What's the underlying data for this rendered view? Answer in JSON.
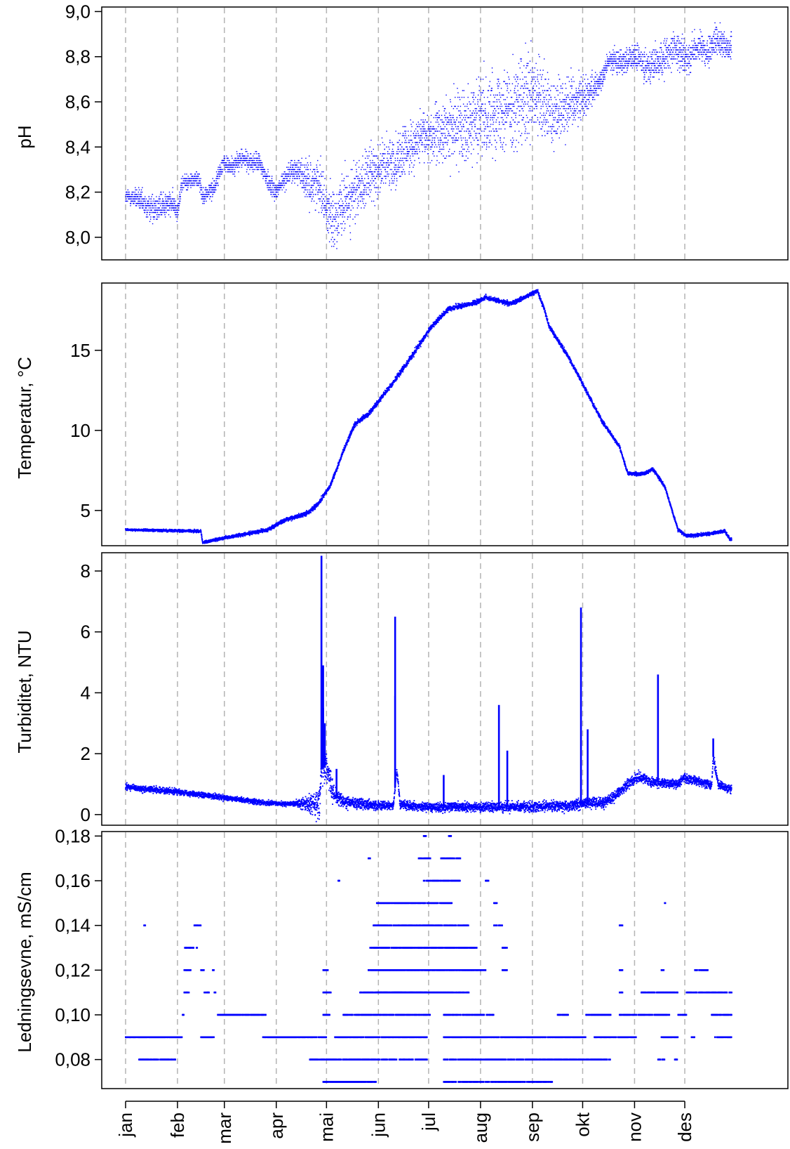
{
  "chart_data": {
    "type": "scatter",
    "series_color": "#0000ff",
    "grid": "vertical dashed lines at month starts",
    "x_axis": {
      "unit": "day of year",
      "range": [
        0,
        365
      ],
      "month_starts": [
        0,
        31,
        59,
        90,
        120,
        151,
        181,
        212,
        243,
        273,
        304,
        334
      ],
      "tick_labels": [
        "jan",
        "feb",
        "mar",
        "apr",
        "mai",
        "jun",
        "jul",
        "aug",
        "sep",
        "okt",
        "nov",
        "des"
      ]
    },
    "panels": [
      {
        "id": "ph",
        "ylabel": "pH",
        "ylim": [
          7.9,
          9.02
        ],
        "yticks": [
          8.0,
          8.2,
          8.4,
          8.6,
          8.8,
          9.0
        ],
        "ytick_labels": [
          "8,0",
          "8,2",
          "8,4",
          "8,6",
          "8,8",
          "9,0"
        ],
        "trend": [
          [
            0,
            8.18
          ],
          [
            8,
            8.17
          ],
          [
            12,
            8.13
          ],
          [
            20,
            8.14
          ],
          [
            28,
            8.15
          ],
          [
            31,
            8.12
          ],
          [
            34,
            8.24
          ],
          [
            44,
            8.26
          ],
          [
            46,
            8.18
          ],
          [
            53,
            8.22
          ],
          [
            58,
            8.33
          ],
          [
            64,
            8.31
          ],
          [
            69,
            8.35
          ],
          [
            75,
            8.33
          ],
          [
            80,
            8.33
          ],
          [
            85,
            8.25
          ],
          [
            90,
            8.2
          ],
          [
            97,
            8.28
          ],
          [
            103,
            8.3
          ],
          [
            110,
            8.23
          ],
          [
            116,
            8.25
          ],
          [
            120,
            8.12
          ],
          [
            126,
            8.08
          ],
          [
            131,
            8.15
          ],
          [
            140,
            8.22
          ],
          [
            150,
            8.3
          ],
          [
            160,
            8.33
          ],
          [
            170,
            8.4
          ],
          [
            175,
            8.43
          ],
          [
            181,
            8.45
          ],
          [
            190,
            8.46
          ],
          [
            200,
            8.5
          ],
          [
            212,
            8.53
          ],
          [
            225,
            8.58
          ],
          [
            235,
            8.58
          ],
          [
            245,
            8.62
          ],
          [
            255,
            8.55
          ],
          [
            265,
            8.6
          ],
          [
            275,
            8.63
          ],
          [
            285,
            8.7
          ],
          [
            288,
            8.78
          ],
          [
            300,
            8.78
          ],
          [
            304,
            8.8
          ],
          [
            312,
            8.76
          ],
          [
            320,
            8.78
          ],
          [
            327,
            8.84
          ],
          [
            335,
            8.79
          ],
          [
            342,
            8.85
          ],
          [
            348,
            8.8
          ],
          [
            352,
            8.88
          ],
          [
            360,
            8.84
          ]
        ],
        "spread": [
          [
            0,
            0.03
          ],
          [
            20,
            0.06
          ],
          [
            34,
            0.03
          ],
          [
            100,
            0.04
          ],
          [
            110,
            0.08
          ],
          [
            130,
            0.12
          ],
          [
            175,
            0.09
          ],
          [
            190,
            0.12
          ],
          [
            240,
            0.18
          ],
          [
            270,
            0.1
          ],
          [
            285,
            0.04
          ],
          [
            300,
            0.05
          ],
          [
            320,
            0.07
          ],
          [
            360,
            0.05
          ]
        ]
      },
      {
        "id": "temp",
        "ylabel": "Temperatur, °C",
        "ylim": [
          2.8,
          19.2
        ],
        "yticks": [
          5,
          10,
          15
        ],
        "ytick_labels": [
          "5",
          "10",
          "15"
        ],
        "trend": [
          [
            0,
            3.8
          ],
          [
            45,
            3.7
          ],
          [
            46,
            3.0
          ],
          [
            55,
            3.2
          ],
          [
            70,
            3.5
          ],
          [
            85,
            3.8
          ],
          [
            95,
            4.4
          ],
          [
            108,
            4.8
          ],
          [
            115,
            5.4
          ],
          [
            122,
            6.5
          ],
          [
            132,
            9.2
          ],
          [
            137,
            10.4
          ],
          [
            145,
            11.0
          ],
          [
            160,
            13.0
          ],
          [
            170,
            14.5
          ],
          [
            183,
            16.5
          ],
          [
            193,
            17.6
          ],
          [
            210,
            18.0
          ],
          [
            215,
            18.3
          ],
          [
            230,
            17.9
          ],
          [
            240,
            18.4
          ],
          [
            246,
            18.7
          ],
          [
            250,
            17.6
          ],
          [
            253,
            16.5
          ],
          [
            265,
            14.5
          ],
          [
            275,
            12.5
          ],
          [
            285,
            10.5
          ],
          [
            295,
            9.0
          ],
          [
            300,
            7.3
          ],
          [
            310,
            7.3
          ],
          [
            315,
            7.6
          ],
          [
            322,
            6.5
          ],
          [
            330,
            3.8
          ],
          [
            335,
            3.4
          ],
          [
            345,
            3.5
          ],
          [
            358,
            3.7
          ],
          [
            361,
            3.2
          ]
        ],
        "spread": [
          [
            0,
            0.05
          ],
          [
            120,
            0.12
          ],
          [
            150,
            0.15
          ],
          [
            360,
            0.08
          ]
        ]
      },
      {
        "id": "turb",
        "ylabel": "Turbiditet, NTU",
        "ylim": [
          -0.35,
          8.6
        ],
        "yticks": [
          0,
          2,
          4,
          6,
          8
        ],
        "ytick_labels": [
          "0",
          "2",
          "4",
          "6",
          "8"
        ],
        "trend": [
          [
            0,
            0.9
          ],
          [
            30,
            0.75
          ],
          [
            45,
            0.65
          ],
          [
            60,
            0.55
          ],
          [
            80,
            0.4
          ],
          [
            95,
            0.35
          ],
          [
            116,
            0.35
          ],
          [
            117,
            1.5
          ],
          [
            120,
            1.6
          ],
          [
            124,
            0.7
          ],
          [
            130,
            0.4
          ],
          [
            150,
            0.3
          ],
          [
            160,
            0.3
          ],
          [
            162,
            1.5
          ],
          [
            164,
            0.35
          ],
          [
            175,
            0.25
          ],
          [
            200,
            0.25
          ],
          [
            230,
            0.25
          ],
          [
            245,
            0.25
          ],
          [
            265,
            0.3
          ],
          [
            280,
            0.4
          ],
          [
            285,
            0.35
          ],
          [
            292,
            0.6
          ],
          [
            302,
            1.1
          ],
          [
            307,
            1.25
          ],
          [
            315,
            1.05
          ],
          [
            330,
            1.0
          ],
          [
            333,
            1.2
          ],
          [
            345,
            1.05
          ],
          [
            350,
            0.95
          ],
          [
            351,
            1.9
          ],
          [
            354,
            1.0
          ],
          [
            360,
            0.85
          ]
        ],
        "spread": [
          [
            0,
            0.1
          ],
          [
            100,
            0.06
          ],
          [
            118,
            0.5
          ],
          [
            126,
            0.2
          ],
          [
            160,
            0.12
          ],
          [
            280,
            0.15
          ],
          [
            300,
            0.15
          ],
          [
            360,
            0.12
          ]
        ],
        "spikes": [
          [
            117,
            8.5
          ],
          [
            117,
            6.8
          ],
          [
            118,
            4.9
          ],
          [
            118,
            3.5
          ],
          [
            119,
            3.0
          ],
          [
            161,
            6.5
          ],
          [
            161,
            3.9
          ],
          [
            223,
            3.6
          ],
          [
            228,
            2.1
          ],
          [
            272,
            6.8
          ],
          [
            276,
            2.8
          ],
          [
            318,
            4.6
          ],
          [
            351,
            2.5
          ],
          [
            126,
            1.5
          ],
          [
            190,
            1.3
          ]
        ]
      },
      {
        "id": "cond",
        "ylabel": "Ledningsevne, mS/cm",
        "ylim": [
          0.067,
          0.182
        ],
        "yticks": [
          0.08,
          0.1,
          0.12,
          0.14,
          0.16,
          0.18
        ],
        "ytick_labels": [
          "0,08",
          "0,10",
          "0,12",
          "0,14",
          "0,16",
          "0,18"
        ],
        "segments": [
          [
            0.09,
            0,
            34
          ],
          [
            0.08,
            8,
            30
          ],
          [
            0.14,
            11,
            12
          ],
          [
            0.09,
            45,
            53
          ],
          [
            0.14,
            41,
            45
          ],
          [
            0.13,
            35,
            43
          ],
          [
            0.12,
            35,
            39
          ],
          [
            0.11,
            35,
            38
          ],
          [
            0.1,
            34,
            35
          ],
          [
            0.12,
            45,
            47
          ],
          [
            0.11,
            47,
            50
          ],
          [
            0.12,
            52,
            53
          ],
          [
            0.11,
            53,
            54
          ],
          [
            0.1,
            55,
            84
          ],
          [
            0.09,
            82,
            120
          ],
          [
            0.08,
            110,
            180
          ],
          [
            0.1,
            118,
            122
          ],
          [
            0.11,
            118,
            123
          ],
          [
            0.12,
            118,
            121
          ],
          [
            0.09,
            125,
            180
          ],
          [
            0.07,
            118,
            150
          ],
          [
            0.1,
            130,
            182
          ],
          [
            0.16,
            127,
            128
          ],
          [
            0.11,
            140,
            180
          ],
          [
            0.11,
            150,
            205
          ],
          [
            0.12,
            145,
            215
          ],
          [
            0.12,
            225,
            228
          ],
          [
            0.13,
            146,
            210
          ],
          [
            0.13,
            225,
            228
          ],
          [
            0.14,
            148,
            205
          ],
          [
            0.14,
            220,
            225
          ],
          [
            0.15,
            150,
            195
          ],
          [
            0.15,
            220,
            222
          ],
          [
            0.16,
            178,
            200
          ],
          [
            0.16,
            215,
            217
          ],
          [
            0.17,
            145,
            147
          ],
          [
            0.17,
            175,
            182
          ],
          [
            0.17,
            188,
            200
          ],
          [
            0.18,
            178,
            180
          ],
          [
            0.18,
            193,
            195
          ],
          [
            0.1,
            190,
            220
          ],
          [
            0.09,
            190,
            275
          ],
          [
            0.08,
            190,
            290
          ],
          [
            0.07,
            190,
            255
          ],
          [
            0.09,
            280,
            305
          ],
          [
            0.1,
            258,
            265
          ],
          [
            0.1,
            275,
            290
          ],
          [
            0.1,
            295,
            325
          ],
          [
            0.11,
            295,
            297
          ],
          [
            0.11,
            308,
            330
          ],
          [
            0.12,
            295,
            297
          ],
          [
            0.14,
            295,
            297
          ],
          [
            0.15,
            322,
            323
          ],
          [
            0.12,
            320,
            322
          ],
          [
            0.09,
            320,
            330
          ],
          [
            0.08,
            318,
            322
          ],
          [
            0.1,
            330,
            335
          ],
          [
            0.11,
            335,
            362
          ],
          [
            0.12,
            340,
            348
          ],
          [
            0.09,
            352,
            362
          ],
          [
            0.1,
            350,
            362
          ],
          [
            0.09,
            338,
            340
          ],
          [
            0.08,
            328,
            330
          ]
        ]
      }
    ]
  }
}
